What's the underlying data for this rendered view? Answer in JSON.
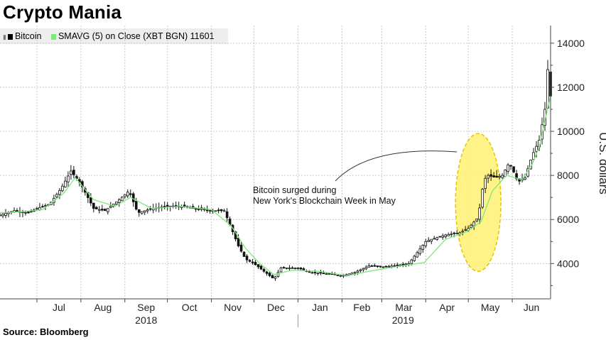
{
  "title": "Crypto Mania",
  "source": "Source: Bloomberg",
  "legend": {
    "series1": "Bitcoin",
    "series2": "SMAVG (5)  on Close (XBT BGN) 11601",
    "series1_color": "#000000",
    "series2_color": "#7cea7c"
  },
  "colors": {
    "grid": "#c8c8c8",
    "candle": "#111111",
    "sma": "#7cea7c",
    "highlight_fill": "#fff27a",
    "highlight_stroke": "#e6c400",
    "legend_bg": "#eeeeee"
  },
  "chart_data": {
    "type": "line",
    "title": "Crypto Mania",
    "ylabel": "U.S. dollars",
    "xlabel": "",
    "ylim": [
      2400,
      14800
    ],
    "yticks": [
      4000,
      6000,
      8000,
      10000,
      12000,
      14000
    ],
    "ytick_labels": [
      "4000",
      "6000",
      "8000",
      "10000",
      "12000",
      "14000"
    ],
    "xlim": [
      "2018-06-05",
      "2019-06-28"
    ],
    "month_ticks": [
      {
        "label": "Jul",
        "date": "2018-07-01"
      },
      {
        "label": "Aug",
        "date": "2018-08-01"
      },
      {
        "label": "Sep",
        "date": "2018-09-01"
      },
      {
        "label": "Oct",
        "date": "2018-10-01"
      },
      {
        "label": "Nov",
        "date": "2018-11-01"
      },
      {
        "label": "Dec",
        "date": "2018-12-01"
      },
      {
        "label": "Jan",
        "date": "2019-01-01"
      },
      {
        "label": "Feb",
        "date": "2019-02-01"
      },
      {
        "label": "Mar",
        "date": "2019-03-01"
      },
      {
        "label": "Apr",
        "date": "2019-04-01"
      },
      {
        "label": "May",
        "date": "2019-05-01"
      },
      {
        "label": "Jun",
        "date": "2019-06-01"
      }
    ],
    "year_labels": [
      {
        "label": "2018",
        "center": "2018-09-16"
      },
      {
        "label": "2019",
        "center": "2019-03-16"
      }
    ],
    "year_divider": "2019-01-01",
    "grid": true,
    "legend_position": "top-left",
    "series": [
      {
        "name": "Bitcoin",
        "style": "candlestick",
        "x": [
          "2018-06-05",
          "2018-06-15",
          "2018-06-25",
          "2018-07-01",
          "2018-07-10",
          "2018-07-18",
          "2018-07-25",
          "2018-08-01",
          "2018-08-10",
          "2018-08-18",
          "2018-08-28",
          "2018-09-04",
          "2018-09-10",
          "2018-09-20",
          "2018-10-01",
          "2018-10-10",
          "2018-10-20",
          "2018-11-01",
          "2018-11-10",
          "2018-11-15",
          "2018-11-20",
          "2018-11-25",
          "2018-12-01",
          "2018-12-07",
          "2018-12-15",
          "2018-12-20",
          "2018-12-25",
          "2019-01-01",
          "2019-01-10",
          "2019-01-20",
          "2019-02-01",
          "2019-02-10",
          "2019-02-20",
          "2019-03-01",
          "2019-03-10",
          "2019-03-20",
          "2019-04-01",
          "2019-04-05",
          "2019-04-15",
          "2019-04-25",
          "2019-05-01",
          "2019-05-08",
          "2019-05-12",
          "2019-05-15",
          "2019-05-20",
          "2019-05-25",
          "2019-05-30",
          "2019-06-05",
          "2019-06-10",
          "2019-06-15",
          "2019-06-20",
          "2019-06-24",
          "2019-06-26",
          "2019-06-28"
        ],
        "values": [
          6200,
          6400,
          6300,
          6500,
          6700,
          7400,
          8200,
          7600,
          6500,
          6400,
          6900,
          7300,
          6300,
          6500,
          6600,
          6600,
          6500,
          6400,
          6400,
          5600,
          4800,
          4200,
          4000,
          3700,
          3300,
          3800,
          3800,
          3800,
          3600,
          3550,
          3450,
          3600,
          3900,
          3850,
          3900,
          4000,
          5000,
          5100,
          5300,
          5400,
          5600,
          6100,
          7800,
          8000,
          7900,
          8000,
          8600,
          7700,
          7900,
          8900,
          9600,
          11000,
          12800,
          11600
        ]
      },
      {
        "name": "SMAVG (5)  on Close (XBT BGN) 11601",
        "style": "line",
        "x": [
          "2018-06-05",
          "2018-06-20",
          "2018-07-05",
          "2018-07-20",
          "2018-07-28",
          "2018-08-10",
          "2018-08-25",
          "2018-09-05",
          "2018-09-20",
          "2018-10-10",
          "2018-11-01",
          "2018-11-15",
          "2018-11-25",
          "2018-12-05",
          "2018-12-15",
          "2018-12-28",
          "2019-01-15",
          "2019-02-05",
          "2019-02-20",
          "2019-03-10",
          "2019-03-31",
          "2019-04-15",
          "2019-04-30",
          "2019-05-10",
          "2019-05-18",
          "2019-05-28",
          "2019-06-08",
          "2019-06-15",
          "2019-06-20",
          "2019-06-24",
          "2019-06-28"
        ],
        "values": [
          6300,
          6350,
          6450,
          7200,
          7900,
          6900,
          6600,
          7000,
          6500,
          6600,
          6450,
          5700,
          4700,
          4000,
          3500,
          3700,
          3650,
          3450,
          3650,
          3850,
          4050,
          5100,
          5450,
          5900,
          7300,
          8000,
          7800,
          8500,
          9300,
          10500,
          11600
        ]
      }
    ]
  },
  "annotation": {
    "line1": "Bitcoin surged during",
    "line2": "New York's Blockchain Week in May"
  }
}
